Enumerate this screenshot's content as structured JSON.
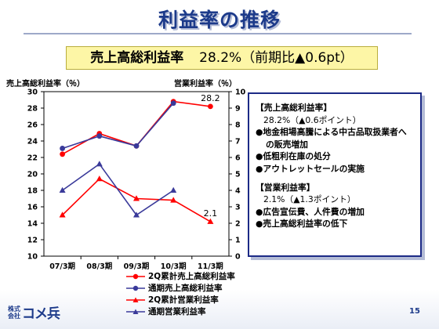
{
  "page": {
    "title": "利益率の推移",
    "highlight_label": "売上高総利益率",
    "highlight_value": "28.2%（前期比▲0.6pt）",
    "logo_small": "株式会社",
    "logo_main": "コメ兵",
    "page_number": "15"
  },
  "note": {
    "section1_heading": "【売上高総利益率】",
    "section1_value": "28.2%（▲0.6ポイント）",
    "section1_bullets": [
      "●地金相場高騰による中古品取扱業者への販売増加",
      "●低粗利在庫の処分",
      "●アウトレットセールの実施"
    ],
    "section2_heading": "【営業利益率】",
    "section2_value": "2.1%（▲1.3ポイント）",
    "section2_bullets": [
      "●広告宣伝費、人件費の増加",
      "●売上高総利益率の低下"
    ]
  },
  "chart_data": {
    "type": "line",
    "categories": [
      "07/3期",
      "08/3期",
      "09/3期",
      "10/3期",
      "11/3期"
    ],
    "left_axis": {
      "label": "売上高総利益率（％）",
      "min": 10,
      "max": 30,
      "ticks": [
        10,
        12,
        14,
        16,
        18,
        20,
        22,
        24,
        26,
        28,
        30
      ]
    },
    "right_axis": {
      "label": "営業利益率（％）",
      "min": 0,
      "max": 10,
      "ticks": [
        0,
        1,
        2,
        3,
        4,
        5,
        6,
        7,
        8,
        9,
        10
      ]
    },
    "grid": false,
    "series": [
      {
        "name": "2Q累計売上高総利益率",
        "axis": "left",
        "marker": "circle",
        "color": "#ff0000",
        "values": [
          22.4,
          24.9,
          23.4,
          28.8,
          28.2
        ]
      },
      {
        "name": "通期売上高総利益率",
        "axis": "left",
        "marker": "circle",
        "color": "#3a3a9a",
        "values": [
          23.1,
          24.6,
          23.4,
          28.6,
          null
        ]
      },
      {
        "name": "2Q累計営業利益率",
        "axis": "right",
        "marker": "triangle",
        "color": "#ff0000",
        "values": [
          2.5,
          4.7,
          3.5,
          3.4,
          2.1
        ]
      },
      {
        "name": "通期営業利益率",
        "axis": "right",
        "marker": "triangle",
        "color": "#3a3a9a",
        "values": [
          4.0,
          5.6,
          2.5,
          4.0,
          null
        ]
      }
    ],
    "annotations": [
      {
        "series": 0,
        "index": 4,
        "text": "28.2"
      },
      {
        "series": 2,
        "index": 4,
        "text": "2.1"
      }
    ]
  }
}
